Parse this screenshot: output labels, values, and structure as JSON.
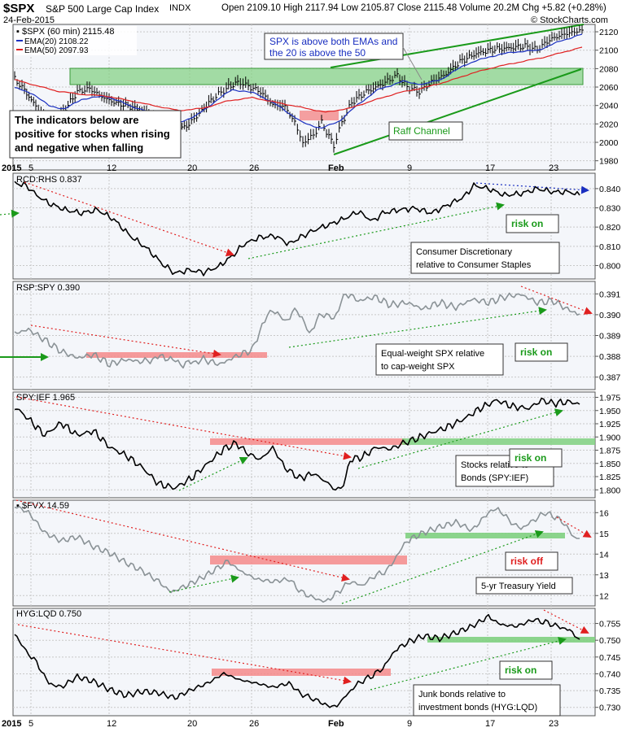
{
  "header": {
    "symbol": "$SPX",
    "name": "S&P 500 Large Cap Index",
    "exchange": "INDX",
    "date": "24-Feb-2015",
    "quote": "Open 2109.10  High 2117.94  Low 2105.87  Close 2115.48  Volume 20.2M  Chg +5.82 (+0.28%)",
    "credit": "© StockCharts.com"
  },
  "colors": {
    "grid": "#c8c8c8",
    "panel_bg": "#f4f6fa",
    "green": "#1a9a1a",
    "red": "#e02020",
    "blue": "#1a2fc0",
    "gray": "#8a9296",
    "rect_green": "#7fd07f",
    "rect_red": "#f48a8a"
  },
  "x_axis": {
    "labels": [
      "2015",
      "5",
      "12",
      "20",
      "26",
      "Feb",
      "9",
      "17",
      "23"
    ],
    "bold": [
      "2015",
      "Feb"
    ]
  },
  "chart_data": [
    {
      "type": "line",
      "series_label": "$SPX (60 min) 2115.48",
      "series": [
        {
          "name": "EMA(20) 2108.22",
          "color": "#1a2fc0"
        },
        {
          "name": "EMA(50) 2097.93",
          "color": "#e02020"
        }
      ],
      "y_ticks": [
        "2120",
        "2100",
        "2080",
        "2060",
        "2040",
        "2020",
        "2000",
        "1980"
      ],
      "ylim": [
        1970,
        2128
      ],
      "annotations": {
        "callout_emas": "SPX is above both EMAs and the 20 is above the 50",
        "callout_indicators": "The indicators below are positive for stocks when rising and negative when falling",
        "raff": "Raff Channel"
      }
    },
    {
      "type": "line",
      "series_label": "RCD:RHS 0.837",
      "y_ticks": [
        "0.840",
        "0.830",
        "0.820",
        "0.810",
        "0.800"
      ],
      "ylim": [
        0.793,
        0.848
      ],
      "labels": {
        "risk": "risk on",
        "desc_1": "Consumer Discretionary",
        "desc_2": "relative to Consumer Staples"
      }
    },
    {
      "type": "line",
      "series_label": "RSP:SPY 0.390",
      "y_ticks": [
        "0.391",
        "0.390",
        "0.389",
        "0.388",
        "0.387"
      ],
      "ylim": [
        0.3864,
        0.3916
      ],
      "labels": {
        "risk": "risk on",
        "desc_1": "Equal-weight SPX relative",
        "desc_2": "to cap-weight SPX"
      }
    },
    {
      "type": "line",
      "series_label": "SPY:IEF 1.965",
      "y_ticks": [
        "1.975",
        "1.950",
        "1.925",
        "1.900",
        "1.875",
        "1.850",
        "1.825",
        "1.800"
      ],
      "ylim": [
        1.785,
        1.985
      ],
      "labels": {
        "risk": "risk on",
        "desc_1": "Stocks relative to",
        "desc_2": "Bonds (SPY:IEF)"
      }
    },
    {
      "type": "line",
      "series_label": "$FVX 14.59",
      "y_ticks": [
        "16",
        "15",
        "14",
        "13",
        "12"
      ],
      "ylim": [
        11.5,
        16.6
      ],
      "labels": {
        "risk": "risk off",
        "desc_1": "5-yr Treasury Yield"
      }
    },
    {
      "type": "line",
      "series_label": "HYG:LQD 0.750",
      "y_ticks": [
        "0.755",
        "0.750",
        "0.745",
        "0.740",
        "0.735",
        "0.730"
      ],
      "ylim": [
        0.7275,
        0.7595
      ],
      "labels": {
        "risk": "risk on",
        "desc_1": "Junk bonds relative to",
        "desc_2": "investment bonds (HYG:LQD)"
      }
    }
  ]
}
